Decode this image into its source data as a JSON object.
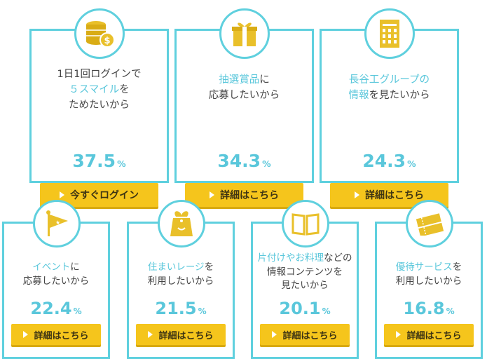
{
  "colors": {
    "accent": "#5fd0de",
    "highlight": "#5ac7db",
    "button": "#f5c51c"
  },
  "cards": [
    {
      "icon": "coins-icon",
      "line1a": "1日1回ログインで",
      "line2_hl": "５スマイル",
      "line2_rest": "を",
      "line3": "ためたいから",
      "pct": "37.5",
      "unit": "%",
      "button": "今すぐログイン"
    },
    {
      "icon": "gift-icon",
      "line1_hl": "抽選賞品",
      "line1_rest": "に",
      "line2": "応募したいから",
      "pct": "34.3",
      "unit": "%",
      "button": "詳細はこちら"
    },
    {
      "icon": "building-icon",
      "line1_hl": "長谷工グループの",
      "line2_hl": "情報",
      "line2_rest": "を見たいから",
      "pct": "24.3",
      "unit": "%",
      "button": "詳細はこちら"
    },
    {
      "icon": "flag-icon",
      "line1_hl": "イベント",
      "line1_rest": "に",
      "line2": "応募したいから",
      "pct": "22.4",
      "unit": "%",
      "button": "詳細はこちら"
    },
    {
      "icon": "tag-icon",
      "line1_hl": "住まいレージ",
      "line1_rest": "を",
      "line2": "利用したいから",
      "pct": "21.5",
      "unit": "%",
      "button": "詳細はこちら"
    },
    {
      "icon": "book-icon",
      "line1_hl": "片付けやお料理",
      "line1_rest": "などの",
      "line2": "情報コンテンツを",
      "line3": "見たいから",
      "pct": "20.1",
      "unit": "%",
      "button": "詳細はこちら"
    },
    {
      "icon": "ticket-icon",
      "line1_hl": "優待サービス",
      "line1_rest": "を",
      "line2": "利用したいから",
      "pct": "16.8",
      "unit": "%",
      "button": "詳細はこちら"
    }
  ]
}
